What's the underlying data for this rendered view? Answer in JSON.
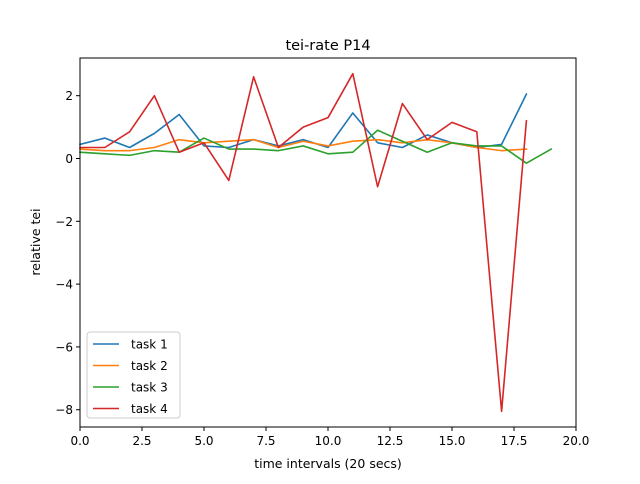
{
  "chart_data": {
    "type": "line",
    "title": "tei-rate P14",
    "xlabel": "time intervals (20 secs)",
    "ylabel": "relative tei",
    "xlim": [
      0,
      20
    ],
    "ylim": [
      -8.55,
      3.2
    ],
    "xticks": [
      0,
      2.5,
      5,
      7.5,
      10,
      12.5,
      15,
      17.5,
      20
    ],
    "xtick_labels": [
      "0.0",
      "2.5",
      "5.0",
      "7.5",
      "10.0",
      "12.5",
      "15.0",
      "17.5",
      "20.0"
    ],
    "yticks": [
      -8,
      -6,
      -4,
      -2,
      0,
      2
    ],
    "ytick_labels": [
      "−8",
      "−6",
      "−4",
      "−2",
      "0",
      "2"
    ],
    "grid": false,
    "legend_position": "lower-left",
    "series": [
      {
        "name": "task 1",
        "color": "#1f77b4",
        "x": [
          0,
          1,
          2,
          3,
          4,
          5,
          6,
          7,
          8,
          9,
          10,
          11,
          12,
          13,
          14,
          15,
          16,
          17,
          18
        ],
        "y": [
          0.45,
          0.65,
          0.35,
          0.8,
          1.4,
          0.4,
          0.35,
          0.6,
          0.4,
          0.6,
          0.35,
          1.45,
          0.5,
          0.35,
          0.75,
          0.5,
          0.35,
          0.45,
          2.05
        ]
      },
      {
        "name": "task 2",
        "color": "#ff7f0e",
        "x": [
          0,
          1,
          2,
          3,
          4,
          5,
          6,
          7,
          8,
          9,
          10,
          11,
          12,
          13,
          14,
          15,
          16,
          17,
          18
        ],
        "y": [
          0.3,
          0.25,
          0.25,
          0.35,
          0.6,
          0.5,
          0.55,
          0.6,
          0.35,
          0.55,
          0.4,
          0.55,
          0.6,
          0.5,
          0.6,
          0.5,
          0.35,
          0.25,
          0.3
        ]
      },
      {
        "name": "task 3",
        "color": "#2ca02c",
        "x": [
          0,
          1,
          2,
          3,
          4,
          5,
          6,
          7,
          8,
          9,
          10,
          11,
          12,
          13,
          14,
          15,
          16,
          17,
          18,
          19
        ],
        "y": [
          0.2,
          0.15,
          0.1,
          0.25,
          0.2,
          0.65,
          0.3,
          0.3,
          0.25,
          0.4,
          0.15,
          0.2,
          0.9,
          0.55,
          0.2,
          0.5,
          0.4,
          0.4,
          -0.15,
          0.3
        ]
      },
      {
        "name": "task 4",
        "color": "#d62728",
        "x": [
          0,
          1,
          2,
          3,
          4,
          5,
          6,
          7,
          8,
          9,
          10,
          11,
          12,
          13,
          14,
          15,
          16,
          17,
          18
        ],
        "y": [
          0.35,
          0.35,
          0.85,
          2.0,
          0.2,
          0.5,
          -0.7,
          2.6,
          0.35,
          1.0,
          1.3,
          2.7,
          -0.9,
          1.75,
          0.6,
          1.15,
          0.85,
          -8.05,
          1.2
        ]
      }
    ]
  }
}
